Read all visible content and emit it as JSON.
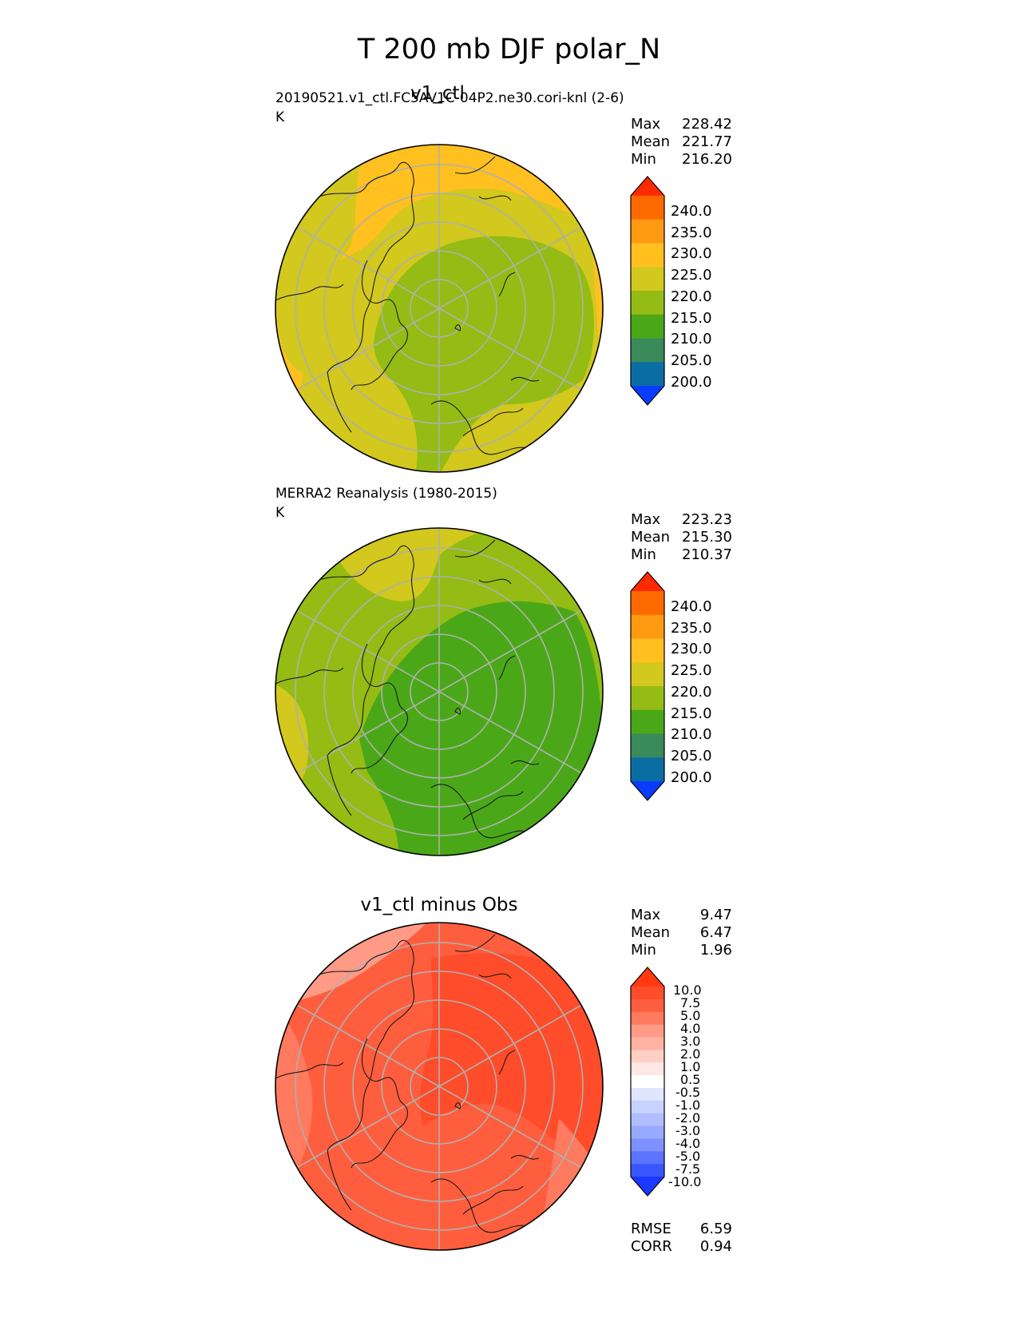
{
  "title": "T 200 mb DJF polar_N",
  "panels": [
    {
      "id": "test",
      "title": "v1_ctl",
      "subtitle": "20190521.v1_ctl.FC5AV1C-04P2.ne30.cori-knl (2-6)",
      "units": "K",
      "stats": [
        {
          "label": "Max",
          "value": "228.42"
        },
        {
          "label": "Mean",
          "value": "221.77"
        },
        {
          "label": "Min",
          "value": "216.20"
        }
      ]
    },
    {
      "id": "ref",
      "title": "",
      "subtitle": "MERRA2 Reanalysis (1980-2015)",
      "units": "K",
      "stats": [
        {
          "label": "Max",
          "value": "223.23"
        },
        {
          "label": "Mean",
          "value": "215.30"
        },
        {
          "label": "Min",
          "value": "210.37"
        }
      ]
    },
    {
      "id": "diff",
      "title": "v1_ctl minus Obs",
      "subtitle": "",
      "units": "",
      "stats": [
        {
          "label": "Max",
          "value": "9.47"
        },
        {
          "label": "Mean",
          "value": "6.47"
        },
        {
          "label": "Min",
          "value": "1.96"
        }
      ],
      "metrics": [
        {
          "label": "RMSE",
          "value": "6.59"
        },
        {
          "label": "CORR",
          "value": "0.94"
        }
      ]
    }
  ],
  "colorbars": {
    "field": {
      "levels": [
        "240.0",
        "235.0",
        "230.0",
        "225.0",
        "220.0",
        "215.0",
        "210.0",
        "205.0",
        "200.0"
      ],
      "colors": [
        "#ff2a00",
        "#ff6a00",
        "#ff9a12",
        "#ffc020",
        "#d2c81e",
        "#94bc14",
        "#4aa818",
        "#3a8a5a",
        "#0a6ea2",
        "#0a3cff"
      ]
    },
    "diff": {
      "levels": [
        "10.0",
        "7.5",
        "5.0",
        "4.0",
        "3.0",
        "2.0",
        "1.0",
        "0.5",
        "-0.5",
        "-1.0",
        "-2.0",
        "-3.0",
        "-4.0",
        "-5.0",
        "-7.5",
        "-10.0"
      ],
      "colors": [
        "#ff3a10",
        "#ff4c2a",
        "#ff5e3e",
        "#ff7a5e",
        "#ff9a86",
        "#ffb2a2",
        "#ffcec4",
        "#ffe8e4",
        "#ffffff",
        "#e0e6ff",
        "#c8d2ff",
        "#b0beff",
        "#98aaff",
        "#7e92ff",
        "#5c74ff",
        "#3a56ff",
        "#1a38ff"
      ]
    }
  },
  "map": {
    "projection": "north polar stereographic",
    "graticule_color": "#b0b0b0",
    "coastline_color": "#1a1a1a"
  }
}
